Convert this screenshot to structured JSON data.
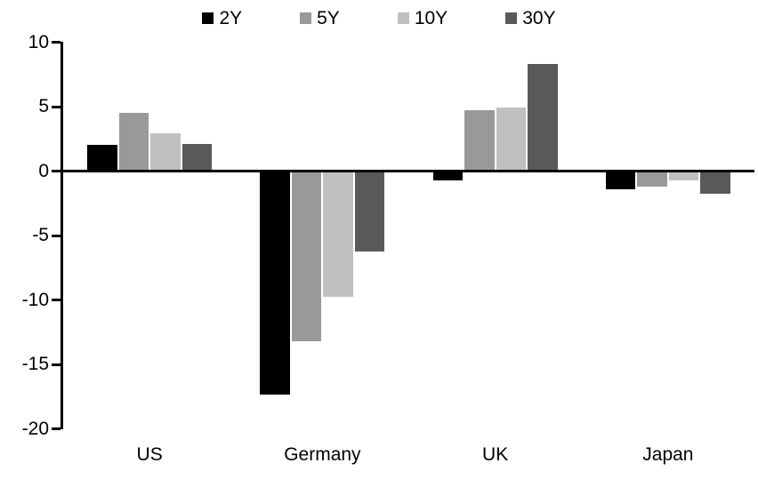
{
  "chart_data": {
    "type": "bar",
    "title": "",
    "xlabel": "",
    "ylabel": "",
    "categories": [
      "US",
      "Germany",
      "UK",
      "Japan"
    ],
    "series": [
      {
        "name": "2Y",
        "color": "#000000",
        "values": [
          2.1,
          -17.4,
          -0.8,
          -1.5
        ]
      },
      {
        "name": "5Y",
        "color": "#999999",
        "values": [
          4.6,
          -13.3,
          4.8,
          -1.3
        ]
      },
      {
        "name": "10Y",
        "color": "#c0c0c0",
        "values": [
          3.0,
          -9.8,
          5.0,
          -0.8
        ]
      },
      {
        "name": "30Y",
        "color": "#595959",
        "values": [
          2.2,
          -6.3,
          8.4,
          -1.8
        ]
      }
    ],
    "ylim": [
      -20,
      10
    ],
    "yticks": [
      10,
      5,
      0,
      -5,
      -10,
      -15,
      -20
    ],
    "grid": false,
    "legend_position": "top-center",
    "axis_color": "#000000",
    "background_color": "#ffffff"
  }
}
